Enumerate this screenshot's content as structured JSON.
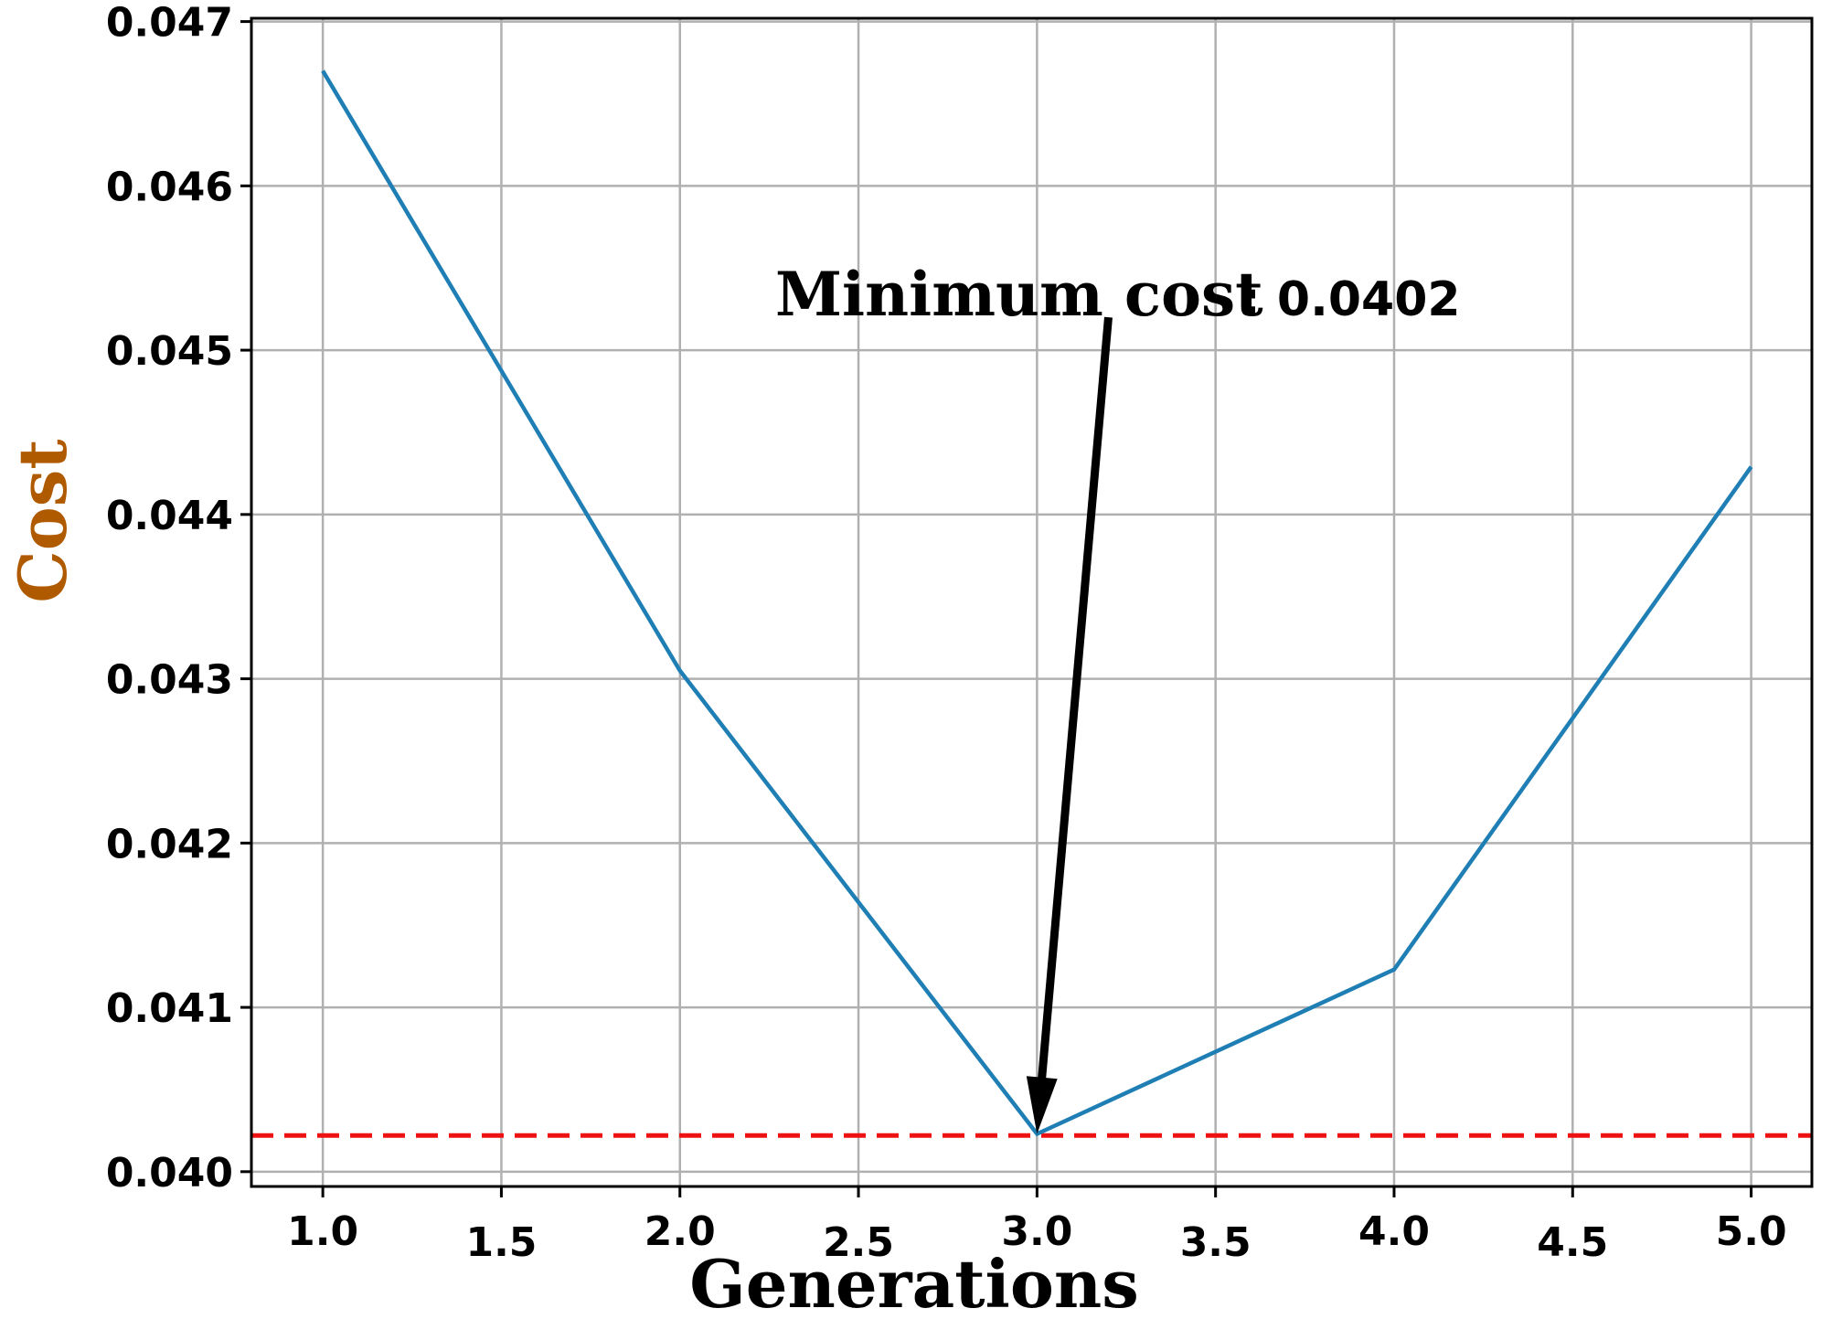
{
  "chart_data": {
    "type": "line",
    "title": "",
    "xlabel": "Generations",
    "ylabel": "Cost",
    "xlim": [
      0.8,
      5.17
    ],
    "ylim": [
      0.03991,
      0.04702
    ],
    "grid": true,
    "x_ticks": [
      1.0,
      1.5,
      2.0,
      2.5,
      3.0,
      3.5,
      4.0,
      4.5,
      5.0
    ],
    "x_tick_labels": [
      "1.0",
      "1.5",
      "2.0",
      "2.5",
      "3.0",
      "3.5",
      "4.0",
      "4.5",
      "5.0"
    ],
    "y_ticks": [
      0.04,
      0.041,
      0.042,
      0.043,
      0.044,
      0.045,
      0.046,
      0.047
    ],
    "y_tick_labels": [
      "0.040",
      "0.041",
      "0.042",
      "0.043",
      "0.044",
      "0.045",
      "0.046",
      "0.047"
    ],
    "series": [
      {
        "name": "Cost",
        "color": "#1f7fb5",
        "x": [
          1,
          2,
          3,
          4,
          5
        ],
        "y": [
          0.0467,
          0.04305,
          0.04023,
          0.04123,
          0.04429
        ]
      }
    ],
    "reference_line": {
      "y": 0.04022,
      "color": "#ee1111",
      "style": "dashed"
    },
    "annotation": {
      "label_part1": "Minimum cost",
      "label_part2": ": 0.0402",
      "point": {
        "x": 3,
        "y": 0.04023
      },
      "text_anchor": {
        "x": 3.2,
        "y": 0.0452
      }
    },
    "colors": {
      "ylabel": "#b05a00",
      "xlabel": "#000000",
      "grid": "#b0b0b0",
      "axes": "#000000"
    }
  }
}
